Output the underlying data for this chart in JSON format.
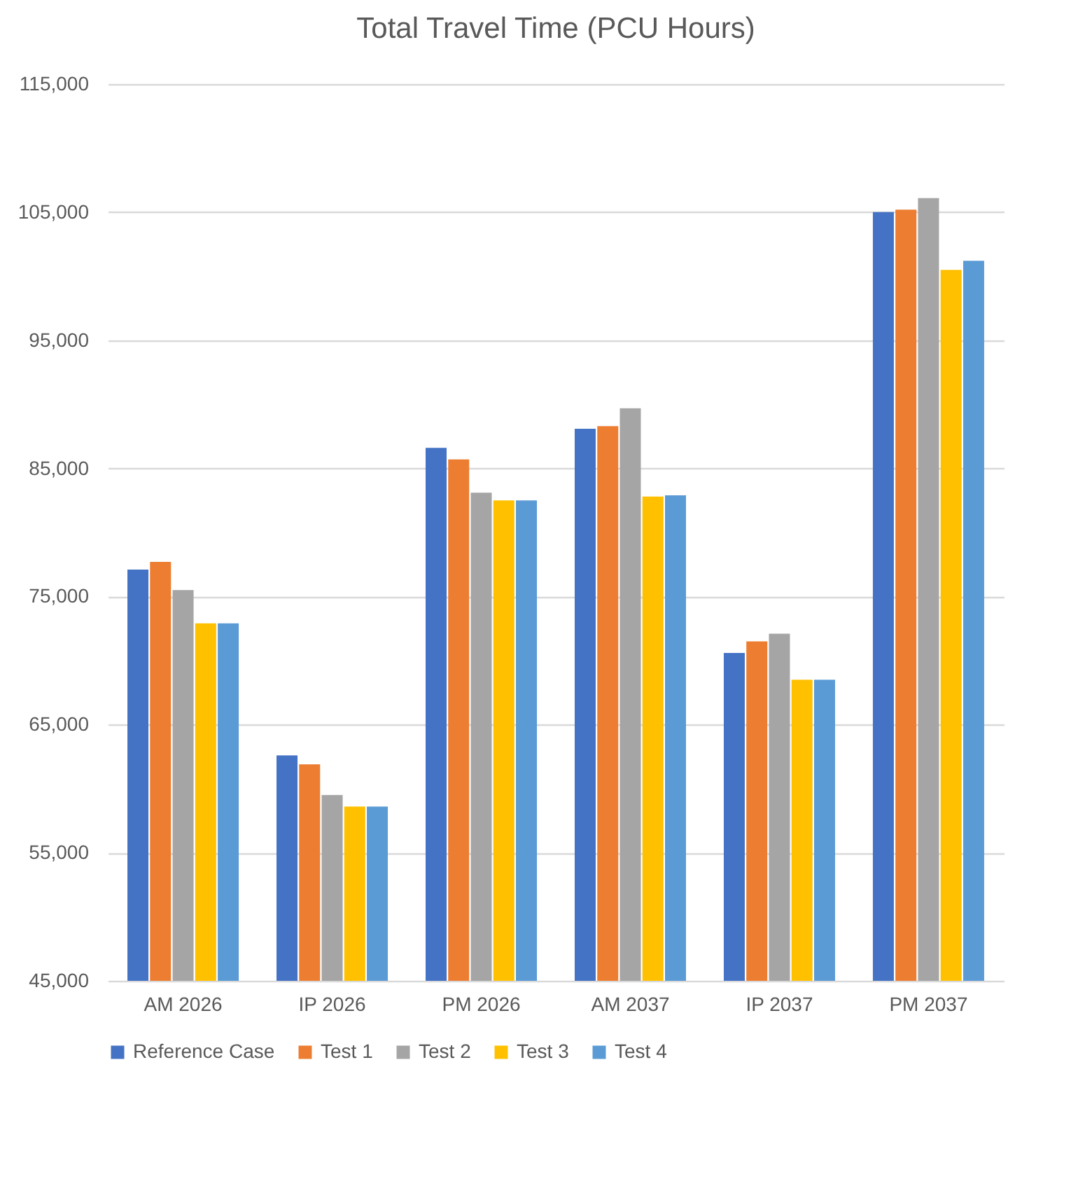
{
  "chart_data": {
    "type": "bar",
    "title": "Total Travel Time (PCU Hours)",
    "categories": [
      "AM 2026",
      "IP 2026",
      "PM 2026",
      "AM 2037",
      "IP 2037",
      "PM 2037"
    ],
    "series": [
      {
        "name": "Reference Case",
        "color": "#4472c4",
        "values": [
          77100,
          62600,
          86600,
          88100,
          70600,
          105000
        ]
      },
      {
        "name": "Test 1",
        "color": "#ed7d31",
        "values": [
          77700,
          61900,
          85700,
          88300,
          71500,
          105200
        ]
      },
      {
        "name": "Test 2",
        "color": "#a5a5a5",
        "values": [
          75500,
          59500,
          83100,
          89700,
          72100,
          106100
        ]
      },
      {
        "name": "Test 3",
        "color": "#ffc000",
        "values": [
          72900,
          58600,
          82500,
          82800,
          68500,
          100500
        ]
      },
      {
        "name": "Test 4",
        "color": "#5b9bd5",
        "values": [
          72900,
          58600,
          82500,
          82900,
          68500,
          101200
        ]
      }
    ],
    "ylim": [
      45000,
      115000
    ],
    "yticks": [
      {
        "value": 45000,
        "label": "45,000"
      },
      {
        "value": 55000,
        "label": "55,000"
      },
      {
        "value": 65000,
        "label": "65,000"
      },
      {
        "value": 75000,
        "label": "75,000"
      },
      {
        "value": 85000,
        "label": "85,000"
      },
      {
        "value": 95000,
        "label": "95,000"
      },
      {
        "value": 105000,
        "label": "105,000"
      },
      {
        "value": 115000,
        "label": "115,000"
      }
    ],
    "grid": "y",
    "legend": "bottom"
  }
}
